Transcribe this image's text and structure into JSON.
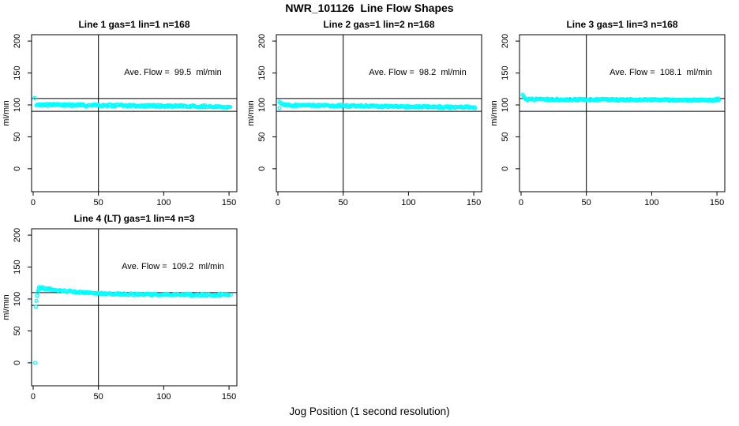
{
  "chart_data": {
    "type": "scatter",
    "title": "NWR_101126  Line Flow Shapes",
    "xlabel": "Jog Position (1 second resolution)",
    "ylabel": "ml/min",
    "xlim": [
      -1.2,
      156
    ],
    "ylim": [
      -36,
      210
    ],
    "x_ticks": [
      0,
      50,
      100,
      150
    ],
    "y_ticks": [
      0,
      50,
      100,
      150,
      200
    ],
    "grid": false,
    "legend": "none",
    "point_color": "#00FFFF",
    "axis_color": "#000000",
    "plots": [
      {
        "title": "Line 1 gas=1 lin=1 n=168",
        "annotation": "Ave. Flow =  99.5  ml/min",
        "ave_flow_ml_min": 99.5,
        "gas": 1,
        "lin": 1,
        "n": 168,
        "ref_h": [
          90,
          110
        ],
        "ref_v": [
          50
        ],
        "points": [
          [
            1.2,
            111
          ]
        ],
        "band": {
          "x0": 2.5,
          "x1": 151,
          "y0": 100.3,
          "y1": 97.3,
          "shape": "linear",
          "jitter": 1.5,
          "n": 230
        }
      },
      {
        "title": "Line 2 gas=1 lin=2 n=168",
        "annotation": "Ave. Flow =  98.2  ml/min",
        "ave_flow_ml_min": 98.2,
        "gas": 1,
        "lin": 2,
        "n": 168,
        "ref_h": [
          90,
          110
        ],
        "ref_v": [
          50
        ],
        "points": [
          [
            1.2,
            105
          ],
          [
            2,
            103.5
          ],
          [
            2.8,
            102
          ],
          [
            1.2,
            95
          ]
        ],
        "band": {
          "x0": 3.5,
          "x1": 151,
          "y0": 99.8,
          "y1": 96.2,
          "shape": "linear",
          "jitter": 1.4,
          "n": 230
        }
      },
      {
        "title": "Line 3 gas=1 lin=3 n=168",
        "annotation": "Ave. Flow =  108.1  ml/min",
        "ave_flow_ml_min": 108.1,
        "gas": 1,
        "lin": 3,
        "n": 168,
        "ref_h": [
          90,
          110
        ],
        "ref_v": [
          50
        ],
        "points": [
          [
            1.2,
            116
          ],
          [
            1.8,
            114
          ],
          [
            2.4,
            112
          ],
          [
            3,
            110.5
          ],
          [
            149.5,
            109.5
          ],
          [
            151,
            110
          ]
        ],
        "band": {
          "x0": 3.5,
          "x1": 151,
          "y0": 108.6,
          "y1": 107.4,
          "shape": "linear",
          "jitter": 1.4,
          "n": 230
        }
      },
      {
        "title": "Line 4 (LT) gas=1 lin=4 n=3",
        "annotation": "Ave. Flow =  109.2  ml/min",
        "ave_flow_ml_min": 109.2,
        "gas": 1,
        "lin": 4,
        "n": 3,
        "ref_h": [
          90,
          110
        ],
        "ref_v": [
          50
        ],
        "points": [
          [
            1.5,
            0
          ],
          [
            2,
            88
          ],
          [
            2.5,
            97
          ],
          [
            3,
            105
          ],
          [
            3.5,
            110
          ],
          [
            4,
            113.5
          ],
          [
            4.5,
            115.5
          ]
        ],
        "band": {
          "x0": 5,
          "x1": 151,
          "y0": 118,
          "y1": 106.3,
          "shape": "exp",
          "tau": 30,
          "jitter": 1.3,
          "n": 210
        }
      }
    ]
  }
}
